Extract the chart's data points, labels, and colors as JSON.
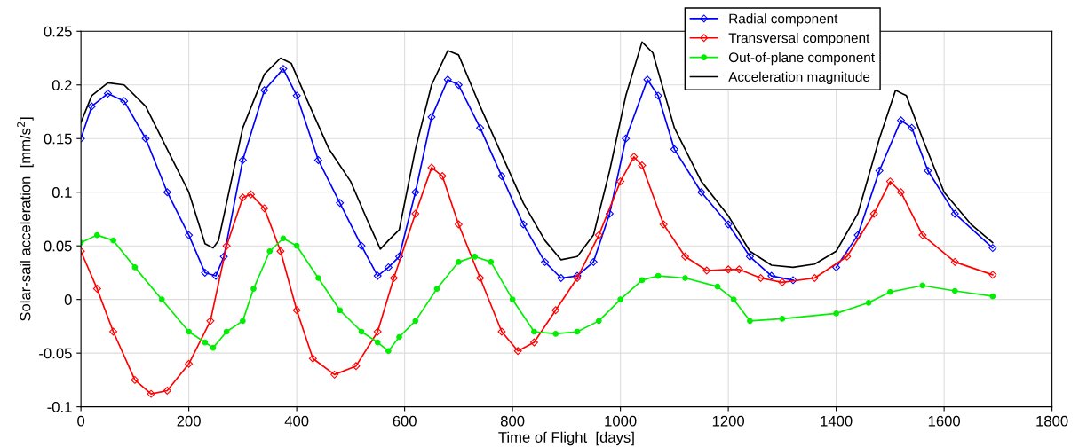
{
  "chart_data": {
    "type": "line",
    "xlabel": "Time of Flight  [days]",
    "ylabel": "Solar-sail acceleration  [mm/s$^{2}$]",
    "xlim": [
      0,
      1800
    ],
    "xticks": [
      0,
      200,
      400,
      600,
      800,
      1000,
      1200,
      1400,
      1600,
      1800
    ],
    "ylim": [
      -0.1,
      0.25
    ],
    "yticks": [
      -0.1,
      -0.05,
      0,
      0.05,
      0.1,
      0.15,
      0.2,
      0.25
    ],
    "grid": true,
    "legend": "top right",
    "series": [
      {
        "name": "Radial component",
        "color": "#0000ff",
        "marker": "diamond",
        "x": [
          0,
          20,
          50,
          80,
          120,
          160,
          200,
          230,
          250,
          265,
          300,
          340,
          375,
          400,
          440,
          480,
          520,
          550,
          570,
          590,
          620,
          650,
          680,
          700,
          740,
          780,
          820,
          860,
          890,
          920,
          950,
          980,
          1010,
          1050,
          1070,
          1100,
          1150,
          1200,
          1240,
          1280,
          1320,
          1360,
          1400,
          1440,
          1480,
          1520,
          1540,
          1570,
          1620,
          1690
        ],
        "values": [
          0.15,
          0.18,
          0.192,
          0.185,
          0.15,
          0.1,
          0.06,
          0.025,
          0.022,
          0.04,
          0.13,
          0.195,
          0.215,
          0.19,
          0.13,
          0.09,
          0.05,
          0.022,
          0.03,
          0.04,
          0.1,
          0.17,
          0.205,
          0.2,
          0.16,
          0.115,
          0.07,
          0.035,
          0.02,
          0.022,
          0.035,
          0.08,
          0.15,
          0.205,
          0.19,
          0.14,
          0.1,
          0.07,
          0.04,
          0.022,
          0.018,
          null,
          0.03,
          0.06,
          0.12,
          0.167,
          0.16,
          0.12,
          0.08,
          0.048
        ]
      },
      {
        "name": "Transversal component",
        "color": "#ff0000",
        "marker": "diamond",
        "x": [
          0,
          30,
          60,
          100,
          130,
          160,
          200,
          240,
          270,
          300,
          315,
          340,
          370,
          400,
          430,
          470,
          510,
          550,
          580,
          620,
          650,
          670,
          700,
          740,
          780,
          810,
          840,
          880,
          920,
          960,
          1000,
          1025,
          1040,
          1080,
          1120,
          1160,
          1200,
          1220,
          1260,
          1300,
          1360,
          1420,
          1470,
          1500,
          1520,
          1560,
          1620,
          1690
        ],
        "values": [
          0.045,
          0.01,
          -0.03,
          -0.075,
          -0.088,
          -0.085,
          -0.06,
          -0.02,
          0.05,
          0.095,
          0.098,
          0.085,
          0.045,
          -0.01,
          -0.055,
          -0.07,
          -0.062,
          -0.03,
          0.02,
          0.08,
          0.123,
          0.115,
          0.07,
          0.02,
          -0.03,
          -0.048,
          -0.04,
          -0.01,
          0.02,
          0.06,
          0.11,
          0.133,
          0.125,
          0.07,
          0.04,
          0.027,
          0.028,
          0.028,
          0.02,
          0.016,
          0.02,
          0.04,
          0.08,
          0.11,
          0.1,
          0.06,
          0.035,
          0.023
        ]
      },
      {
        "name": "Out-of-plane component",
        "color": "#00ee00",
        "marker": "circle",
        "x": [
          0,
          30,
          60,
          100,
          150,
          200,
          230,
          245,
          270,
          300,
          320,
          350,
          375,
          400,
          440,
          480,
          520,
          550,
          570,
          590,
          620,
          660,
          700,
          730,
          760,
          800,
          840,
          880,
          920,
          960,
          1000,
          1040,
          1070,
          1120,
          1180,
          1210,
          1240,
          1300,
          1400,
          1460,
          1500,
          1560,
          1620,
          1690
        ],
        "values": [
          0.053,
          0.06,
          0.055,
          0.03,
          0.0,
          -0.03,
          -0.04,
          -0.045,
          -0.03,
          -0.02,
          0.01,
          0.045,
          0.057,
          0.05,
          0.02,
          -0.01,
          -0.03,
          -0.04,
          -0.048,
          -0.035,
          -0.02,
          0.01,
          0.035,
          0.04,
          0.035,
          0.0,
          -0.03,
          -0.032,
          -0.03,
          -0.02,
          0.0,
          0.018,
          0.022,
          0.02,
          0.012,
          0.0,
          -0.02,
          -0.018,
          -0.013,
          -0.003,
          0.007,
          0.013,
          0.008,
          0.003
        ]
      },
      {
        "name": "Acceleration magnitude",
        "color": "#000000",
        "marker": "none",
        "x": [
          0,
          20,
          50,
          80,
          120,
          160,
          200,
          230,
          245,
          255,
          270,
          300,
          340,
          370,
          390,
          420,
          460,
          500,
          530,
          555,
          570,
          590,
          620,
          650,
          680,
          700,
          740,
          780,
          820,
          860,
          890,
          920,
          950,
          980,
          1010,
          1040,
          1060,
          1100,
          1150,
          1200,
          1240,
          1280,
          1320,
          1360,
          1400,
          1440,
          1480,
          1510,
          1530,
          1560,
          1600,
          1650,
          1690
        ],
        "values": [
          0.165,
          0.19,
          0.202,
          0.2,
          0.18,
          0.14,
          0.1,
          0.052,
          0.048,
          0.055,
          0.09,
          0.16,
          0.21,
          0.225,
          0.22,
          0.185,
          0.14,
          0.11,
          0.075,
          0.047,
          0.055,
          0.065,
          0.14,
          0.2,
          0.232,
          0.228,
          0.18,
          0.135,
          0.09,
          0.055,
          0.037,
          0.04,
          0.06,
          0.12,
          0.19,
          0.24,
          0.23,
          0.16,
          0.11,
          0.078,
          0.045,
          0.032,
          0.03,
          0.033,
          0.045,
          0.08,
          0.15,
          0.195,
          0.19,
          0.15,
          0.1,
          0.07,
          0.053
        ]
      }
    ]
  }
}
